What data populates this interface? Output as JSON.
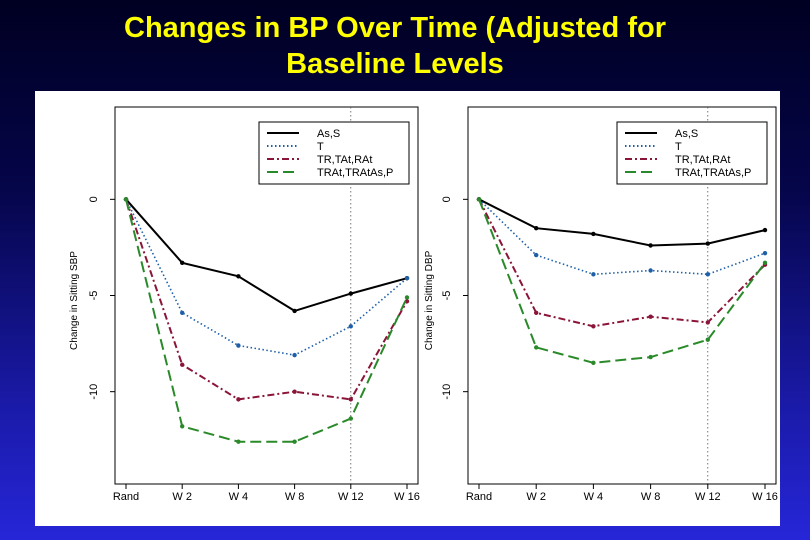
{
  "title": {
    "line1": "Changes in BP Over Time (Adjusted for",
    "line2": "Baseline Levels"
  },
  "colors": {
    "title": "#ffff00",
    "As,S": "#000000",
    "T": "#1f5fa8",
    "TR,TAt,RAt": "#8b1538",
    "TRAt,TRAtAs,P": "#2a8a2a"
  },
  "chart_data": [
    {
      "type": "line",
      "title": "",
      "xlabel": "",
      "ylabel": "Change in Sitting SBP",
      "categories": [
        "Rand",
        "W 2",
        "W 4",
        "W 8",
        "W 12",
        "W 16"
      ],
      "y_ticks": [
        0,
        -5,
        -10
      ],
      "ylim": [
        -14.8,
        4.8
      ],
      "reference_line_at": "W 12",
      "legend_position": "top-right",
      "series": [
        {
          "name": "As,S",
          "style": "solid",
          "values": [
            0,
            -3.3,
            -4.0,
            -5.8,
            -4.9,
            -4.1
          ]
        },
        {
          "name": "T",
          "style": "dotted",
          "values": [
            0,
            -5.9,
            -7.6,
            -8.1,
            -6.6,
            -4.1
          ]
        },
        {
          "name": "TR,TAt,RAt",
          "style": "dash-dot",
          "values": [
            0,
            -8.6,
            -10.4,
            -10.0,
            -10.4,
            -5.3
          ]
        },
        {
          "name": "TRAt,TRAtAs,P",
          "style": "long-dash",
          "values": [
            0,
            -11.8,
            -12.6,
            -12.6,
            -11.4,
            -5.1
          ]
        }
      ]
    },
    {
      "type": "line",
      "title": "",
      "xlabel": "",
      "ylabel": "Change in Sitting DBP",
      "categories": [
        "Rand",
        "W 2",
        "W 4",
        "W 8",
        "W 12",
        "W 16"
      ],
      "y_ticks": [
        0,
        -5,
        -10
      ],
      "ylim": [
        -14.8,
        4.8
      ],
      "reference_line_at": "W 12",
      "legend_position": "top-right",
      "series": [
        {
          "name": "As,S",
          "style": "solid",
          "values": [
            0,
            -1.5,
            -1.8,
            -2.4,
            -2.3,
            -1.6
          ]
        },
        {
          "name": "T",
          "style": "dotted",
          "values": [
            0,
            -2.9,
            -3.9,
            -3.7,
            -3.9,
            -2.8
          ]
        },
        {
          "name": "TR,TAt,RAt",
          "style": "dash-dot",
          "values": [
            0,
            -5.9,
            -6.6,
            -6.1,
            -6.4,
            -3.4
          ]
        },
        {
          "name": "TRAt,TRAtAs,P",
          "style": "long-dash",
          "values": [
            0,
            -7.7,
            -8.5,
            -8.2,
            -7.3,
            -3.3
          ]
        }
      ]
    }
  ]
}
